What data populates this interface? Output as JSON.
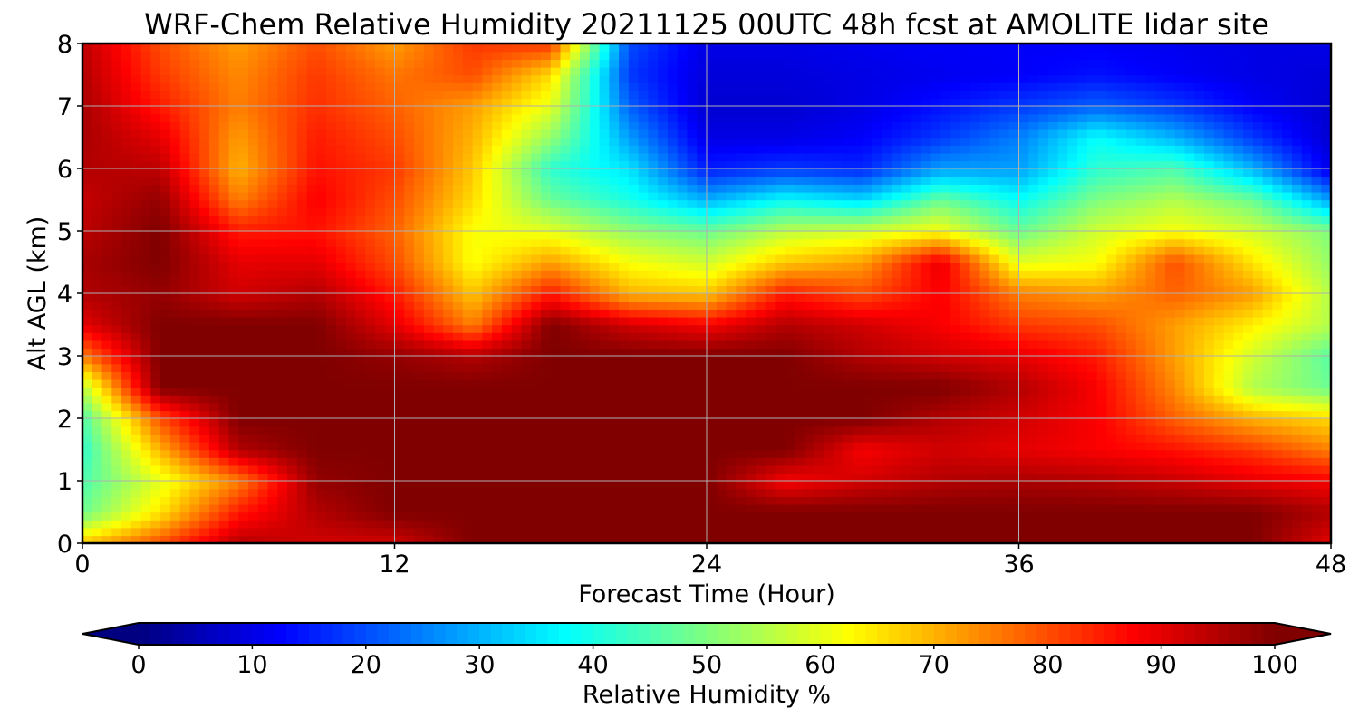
{
  "chart_data": {
    "type": "heatmap",
    "title": "WRF-Chem Relative Humidity 20211125 00UTC 48h fcst at AMOLITE lidar site",
    "xlabel": "Forecast Time (Hour)",
    "ylabel": "Alt AGL (km)",
    "xlim": [
      0,
      48
    ],
    "ylim": [
      0,
      8
    ],
    "x_ticks": [
      0,
      12,
      24,
      36,
      48
    ],
    "y_ticks": [
      0,
      1,
      2,
      3,
      4,
      5,
      6,
      7,
      8
    ],
    "grid": true,
    "colorbar": {
      "label": "Relative Humidity %",
      "orientation": "horizontal",
      "placement": "bottom",
      "colormap": "jet",
      "range": [
        0,
        100
      ],
      "ticks": [
        0,
        10,
        20,
        30,
        40,
        50,
        60,
        70,
        80,
        90,
        100
      ],
      "extend": "both"
    },
    "x": [
      0,
      3,
      6,
      9,
      12,
      15,
      18,
      21,
      24,
      27,
      30,
      33,
      36,
      39,
      42,
      45,
      48
    ],
    "y": [
      0,
      0.5,
      1,
      1.5,
      2,
      2.5,
      3,
      3.5,
      4,
      4.5,
      5,
      5.5,
      6,
      6.5,
      7,
      7.5,
      8
    ],
    "z_rows_by_altitude": [
      [
        68,
        80,
        95,
        92,
        92,
        100,
        100,
        100,
        100,
        100,
        100,
        100,
        100,
        100,
        100,
        100,
        90
      ],
      [
        48,
        65,
        85,
        95,
        100,
        100,
        100,
        100,
        100,
        100,
        100,
        100,
        100,
        100,
        100,
        100,
        95
      ],
      [
        45,
        60,
        75,
        98,
        100,
        100,
        100,
        100,
        100,
        88,
        92,
        95,
        96,
        95,
        93,
        90,
        88
      ],
      [
        42,
        70,
        95,
        100,
        100,
        100,
        100,
        100,
        100,
        100,
        88,
        92,
        90,
        88,
        86,
        82,
        75
      ],
      [
        45,
        80,
        100,
        100,
        100,
        100,
        100,
        100,
        100,
        100,
        100,
        95,
        92,
        88,
        78,
        70,
        66
      ],
      [
        55,
        100,
        100,
        100,
        100,
        100,
        100,
        100,
        100,
        100,
        100,
        100,
        95,
        88,
        74,
        55,
        48
      ],
      [
        75,
        100,
        100,
        100,
        98,
        95,
        100,
        100,
        100,
        100,
        95,
        92,
        90,
        85,
        72,
        58,
        46
      ],
      [
        90,
        100,
        100,
        100,
        90,
        75,
        100,
        92,
        88,
        95,
        92,
        88,
        82,
        80,
        72,
        64,
        55
      ],
      [
        95,
        98,
        92,
        95,
        85,
        68,
        85,
        70,
        68,
        85,
        80,
        88,
        75,
        72,
        78,
        72,
        55
      ],
      [
        96,
        100,
        90,
        90,
        80,
        62,
        72,
        62,
        58,
        68,
        72,
        90,
        60,
        62,
        80,
        65,
        52
      ],
      [
        94,
        100,
        85,
        86,
        78,
        62,
        60,
        52,
        48,
        56,
        58,
        62,
        48,
        58,
        62,
        58,
        50
      ],
      [
        93,
        98,
        75,
        88,
        80,
        66,
        48,
        40,
        30,
        38,
        34,
        48,
        38,
        50,
        55,
        48,
        28
      ],
      [
        95,
        94,
        70,
        86,
        82,
        68,
        42,
        35,
        15,
        18,
        16,
        28,
        28,
        42,
        45,
        30,
        10
      ],
      [
        96,
        90,
        72,
        85,
        80,
        70,
        52,
        28,
        10,
        10,
        12,
        18,
        25,
        38,
        30,
        18,
        8
      ],
      [
        96,
        85,
        75,
        83,
        78,
        72,
        60,
        22,
        8,
        8,
        10,
        14,
        18,
        22,
        18,
        12,
        8
      ],
      [
        95,
        82,
        74,
        82,
        76,
        80,
        66,
        18,
        9,
        9,
        10,
        11,
        12,
        14,
        12,
        10,
        9
      ],
      [
        94,
        80,
        72,
        80,
        72,
        82,
        82,
        20,
        10,
        10,
        11,
        12,
        12,
        12,
        11,
        10,
        10
      ]
    ]
  }
}
